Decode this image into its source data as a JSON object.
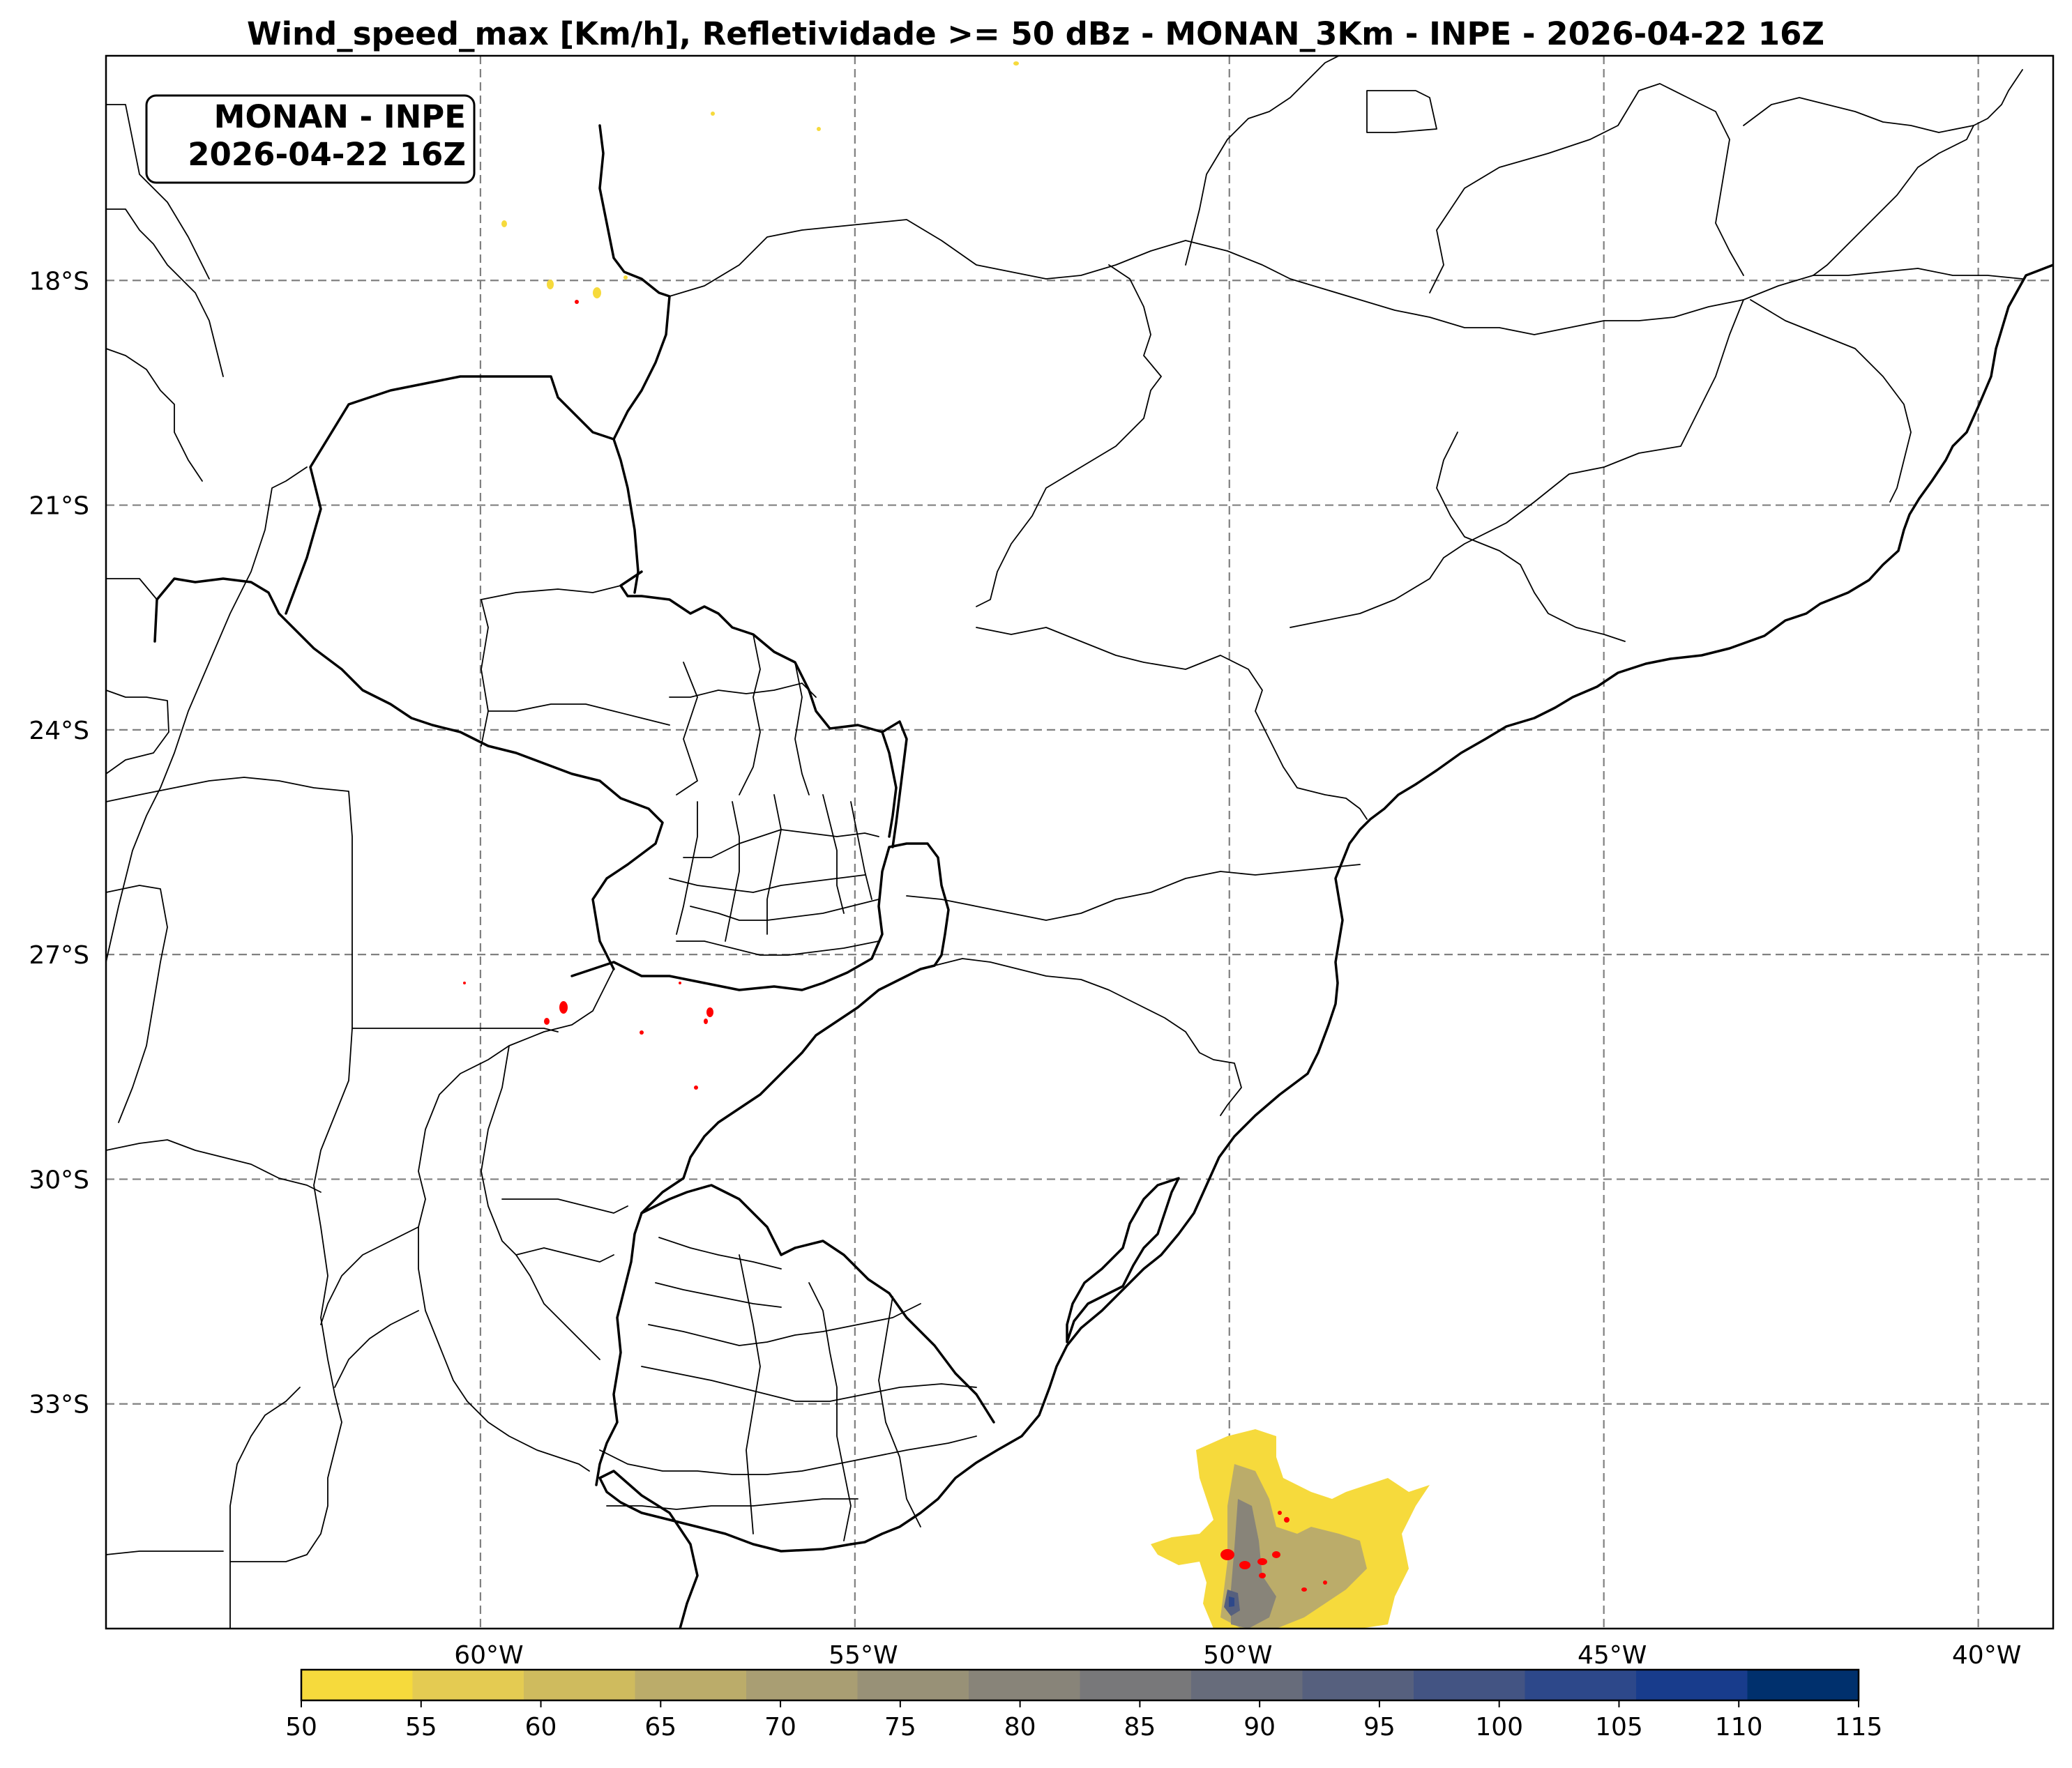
{
  "title": "Wind_speed_max [Km/h], Refletividade >= 50 dBz - MONAN_3Km - INPE - 2026-04-22 16Z",
  "info_box": {
    "line1": "MONAN - INPE",
    "line2": "2026-04-22 16Z"
  },
  "map": {
    "lon_range": [
      -65,
      -39
    ],
    "lat_range": [
      -36,
      -15
    ],
    "lon_ticks": [
      {
        "value": -60,
        "label": "60°W"
      },
      {
        "value": -55,
        "label": "55°W"
      },
      {
        "value": -50,
        "label": "50°W"
      },
      {
        "value": -45,
        "label": "45°W"
      },
      {
        "value": -40,
        "label": "40°W"
      }
    ],
    "lat_ticks": [
      {
        "value": -18,
        "label": "18°S"
      },
      {
        "value": -21,
        "label": "21°S"
      },
      {
        "value": -24,
        "label": "24°S"
      },
      {
        "value": -27,
        "label": "27°S"
      },
      {
        "value": -30,
        "label": "30°S"
      },
      {
        "value": -33,
        "label": "33°S"
      }
    ],
    "gridlines": true,
    "reflectivity_color": "#ff0000"
  },
  "colorbar": {
    "levels": [
      "50",
      "55",
      "60",
      "65",
      "70",
      "75",
      "80",
      "85",
      "90",
      "95",
      "100",
      "105",
      "110",
      "115"
    ],
    "colors": [
      "#f6da3c",
      "#e4cb52",
      "#cfbb5e",
      "#bbac6a",
      "#a99e73",
      "#989177",
      "#888479",
      "#78787a",
      "#676c7b",
      "#56607e",
      "#435483",
      "#2d488a",
      "#183c8c",
      "#00306d"
    ]
  }
}
